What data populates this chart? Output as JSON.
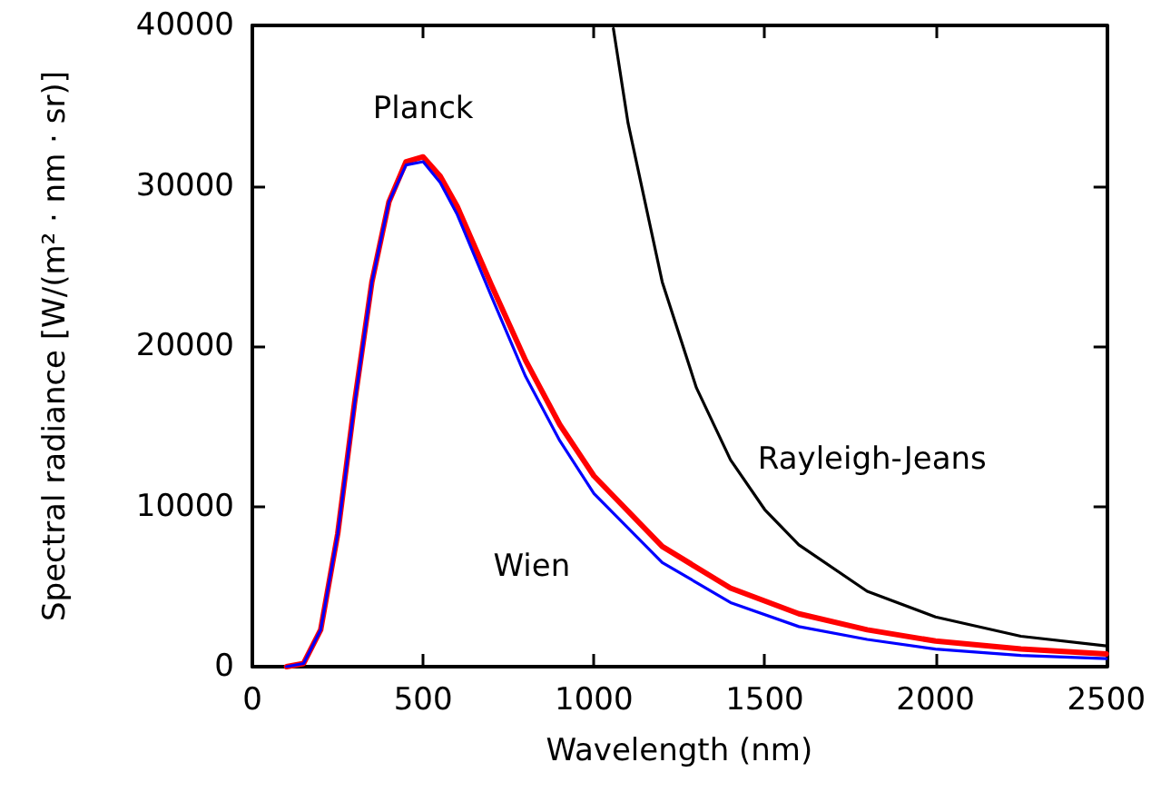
{
  "chart_data": {
    "type": "line",
    "xlabel": "Wavelength (nm)",
    "ylabel": "Spectral radiance [W/(m² · nm · sr)]",
    "xlim": [
      0,
      2500
    ],
    "xticks": [
      0,
      500,
      1000,
      1500,
      2000,
      2500
    ],
    "ylim": [
      0,
      40000
    ],
    "yticks": [
      0,
      10000,
      20000,
      30000,
      40000
    ],
    "grid": false,
    "marker": "none",
    "line_style": "solid",
    "series": [
      {
        "name": "Wien",
        "color": "#0000ff",
        "x": [
          100,
          150,
          200,
          250,
          300,
          350,
          400,
          450,
          500,
          550,
          600,
          700,
          800,
          900,
          1000,
          1200,
          1400,
          1600,
          1800,
          2000,
          2250,
          2500
        ],
        "values": [
          0,
          200,
          2300,
          8300,
          16500,
          24000,
          29000,
          31300,
          31500,
          30200,
          28200,
          23100,
          18100,
          14100,
          10800,
          6500,
          4000,
          2500,
          1700,
          1100,
          700,
          500
        ]
      },
      {
        "name": "Planck",
        "color": "#ff0000",
        "x": [
          100,
          150,
          200,
          250,
          300,
          350,
          400,
          450,
          500,
          550,
          600,
          700,
          800,
          900,
          1000,
          1200,
          1400,
          1600,
          1800,
          2000,
          2250,
          2500
        ],
        "values": [
          0,
          200,
          2300,
          8300,
          16600,
          24000,
          29000,
          31500,
          31800,
          30600,
          28700,
          23800,
          19100,
          15100,
          11900,
          7500,
          4900,
          3300,
          2300,
          1600,
          1100,
          800
        ]
      },
      {
        "name": "Rayleigh-Jeans",
        "color": "#000000",
        "x": [
          1057,
          1100,
          1200,
          1300,
          1400,
          1500,
          1600,
          1800,
          2000,
          2250,
          2500
        ],
        "values": [
          39800,
          33900,
          24000,
          17400,
          12900,
          9800,
          7600,
          4700,
          3100,
          1900,
          1300
        ]
      }
    ]
  }
}
